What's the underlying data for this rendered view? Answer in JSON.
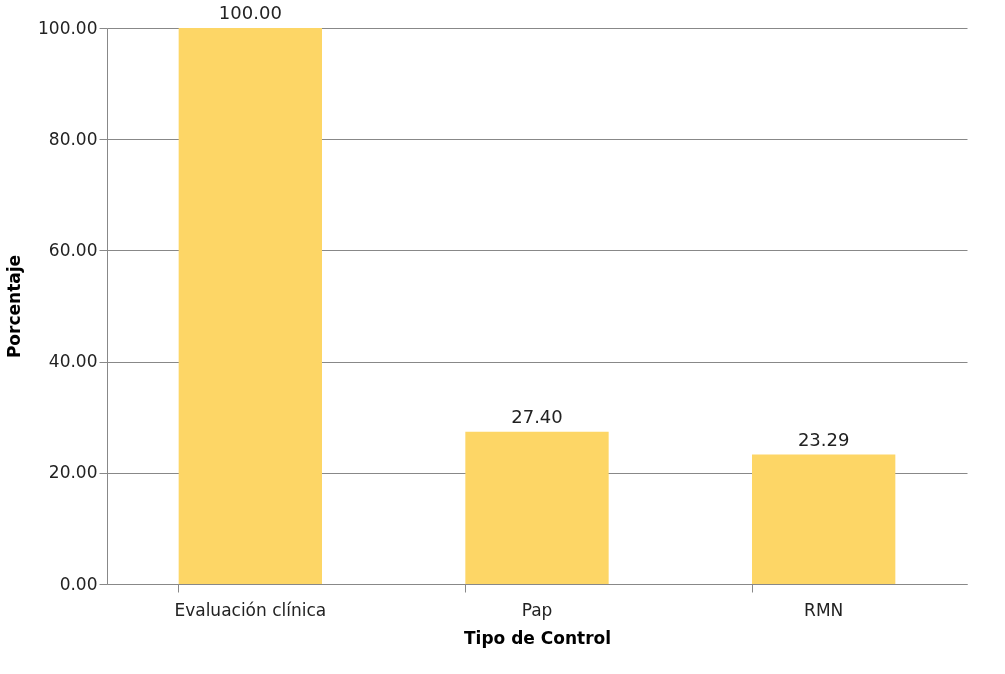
{
  "chart_data": {
    "type": "bar",
    "xlabel": "Tipo de Control",
    "ylabel": "Porcentaje",
    "categories": [
      "Evaluación clínica",
      "Pap",
      "RMN"
    ],
    "values": [
      100,
      27.4,
      23.29
    ],
    "value_labels": [
      "100.00",
      "27.40",
      "23.29"
    ],
    "color": "#fdd666",
    "ylim": [
      0,
      100
    ],
    "yticks": [
      {
        "value": 0,
        "label": "0.00"
      },
      {
        "value": 20,
        "label": "20.00"
      },
      {
        "value": 40,
        "label": "40.00"
      },
      {
        "value": 60,
        "label": "60.00"
      },
      {
        "value": 80,
        "label": "80.00"
      },
      {
        "value": 100,
        "label": "100.00"
      }
    ],
    "grid": "y"
  }
}
